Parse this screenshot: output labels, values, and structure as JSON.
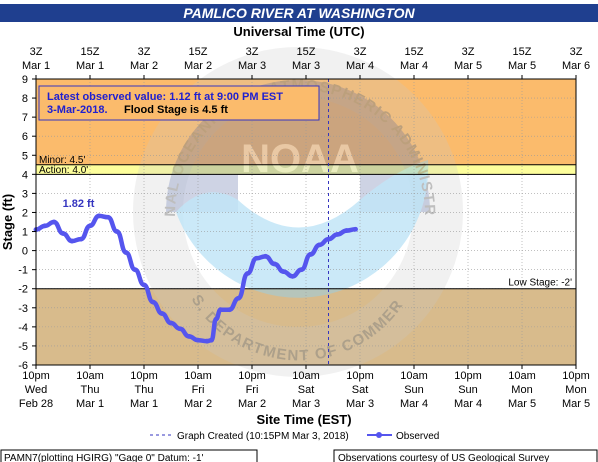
{
  "header": {
    "title": "PAMLICO RIVER AT WASHINGTON",
    "top_axis_title": "Universal Time (UTC)"
  },
  "info_box": {
    "line1": "Latest observed value: 1.12 ft at 9:00 PM EST",
    "line2_date": "3-Mar-2018.",
    "line2_flood": "Flood Stage is 4.5 ft"
  },
  "legend": {
    "created": "Graph Created (10:15PM Mar 3, 2018)",
    "observed": "Observed"
  },
  "footer": {
    "left": "PAMN7(plotting HGIRG) \"Gage 0\" Datum: -1'",
    "right": "Observations courtesy of US Geological Survey"
  },
  "watermark": {
    "arc_top": "NATIONAL OCEANIC AND ATMOSPHERIC ADMINISTRATION",
    "arc_bottom": "U.S. DEPARTMENT OF COMMERCE",
    "center": "NOAA"
  },
  "colors": {
    "title_bg": "#1f3f8f",
    "major_zone": "#fbbb6c",
    "minor_band": "#fdfe9c",
    "low_zone": "#d8bb8c",
    "series": "#5555ee",
    "info_border": "#3535c0",
    "info_text": "#2020d0"
  },
  "chart_data": {
    "type": "line",
    "ylabel": "Stage (ft)",
    "xlabel": "Site Time (EST)",
    "ylim": [
      -6,
      9
    ],
    "yticks": [
      -6,
      -5,
      -4,
      -3,
      -2,
      -1,
      0,
      1,
      2,
      3,
      4,
      5,
      6,
      7,
      8,
      9
    ],
    "grid": true,
    "thresholds": [
      {
        "name": "Minor",
        "label": "Minor: 4.5'",
        "value": 4.5
      },
      {
        "name": "Action",
        "label": "Action: 4.0'",
        "value": 4.0
      },
      {
        "name": "Low Stage",
        "label": "Low Stage: -2'",
        "value": -2
      }
    ],
    "bottom_ticks": [
      {
        "time": "10pm",
        "day": "Wed",
        "date": "Feb 28"
      },
      {
        "time": "10am",
        "day": "Thu",
        "date": "Mar 1"
      },
      {
        "time": "10pm",
        "day": "Thu",
        "date": "Mar 1"
      },
      {
        "time": "10am",
        "day": "Fri",
        "date": "Mar 2"
      },
      {
        "time": "10pm",
        "day": "Fri",
        "date": "Mar 2"
      },
      {
        "time": "10am",
        "day": "Sat",
        "date": "Mar 3"
      },
      {
        "time": "10pm",
        "day": "Sat",
        "date": "Mar 3"
      },
      {
        "time": "10am",
        "day": "Sun",
        "date": "Mar 4"
      },
      {
        "time": "10pm",
        "day": "Sun",
        "date": "Mar 4"
      },
      {
        "time": "10am",
        "day": "Mon",
        "date": "Mar 5"
      },
      {
        "time": "10pm",
        "day": "Mon",
        "date": "Mar 5"
      }
    ],
    "top_ticks": [
      {
        "hour": "3Z",
        "date": "Mar 1"
      },
      {
        "hour": "15Z",
        "date": "Mar 1"
      },
      {
        "hour": "3Z",
        "date": "Mar 2"
      },
      {
        "hour": "15Z",
        "date": "Mar 2"
      },
      {
        "hour": "3Z",
        "date": "Mar 3"
      },
      {
        "hour": "15Z",
        "date": "Mar 3"
      },
      {
        "hour": "3Z",
        "date": "Mar 4"
      },
      {
        "hour": "15Z",
        "date": "Mar 4"
      },
      {
        "hour": "3Z",
        "date": "Mar 5"
      },
      {
        "hour": "15Z",
        "date": "Mar 5"
      },
      {
        "hour": "3Z",
        "date": "Mar 6"
      }
    ],
    "graph_created": "Mar 3 10:15pm",
    "annotations": [
      {
        "label": "1.82 ft",
        "x": "Mar 1 7am",
        "y": 1.82
      }
    ],
    "series": [
      {
        "name": "Observed",
        "points": [
          [
            "Feb 28 10pm",
            1.1
          ],
          [
            "Mar 1 12am",
            1.3
          ],
          [
            "Mar 1 2am",
            1.5
          ],
          [
            "Mar 1 4am",
            0.9
          ],
          [
            "Mar 1 6am",
            0.5
          ],
          [
            "Mar 1 8am",
            0.6
          ],
          [
            "Mar 1 10am",
            1.3
          ],
          [
            "Mar 1 12pm",
            1.82
          ],
          [
            "Mar 1 2pm",
            1.75
          ],
          [
            "Mar 1 4pm",
            1.0
          ],
          [
            "Mar 1 6pm",
            -0.1
          ],
          [
            "Mar 1 8pm",
            -1.0
          ],
          [
            "Mar 1 10pm",
            -1.8
          ],
          [
            "Mar 2 12am",
            -2.7
          ],
          [
            "Mar 2 2am",
            -3.3
          ],
          [
            "Mar 2 4am",
            -3.8
          ],
          [
            "Mar 2 6am",
            -4.1
          ],
          [
            "Mar 2 8am",
            -4.5
          ],
          [
            "Mar 2 10am",
            -4.7
          ],
          [
            "Mar 2 12pm",
            -4.75
          ],
          [
            "Mar 2 1pm",
            -4.7
          ],
          [
            "Mar 2 2pm",
            -3.6
          ],
          [
            "Mar 2 3pm",
            -3.1
          ],
          [
            "Mar 2 5pm",
            -3.1
          ],
          [
            "Mar 2 7pm",
            -2.5
          ],
          [
            "Mar 2 9pm",
            -1.2
          ],
          [
            "Mar 2 11pm",
            -0.4
          ],
          [
            "Mar 3 1am",
            -0.3
          ],
          [
            "Mar 3 3am",
            -0.7
          ],
          [
            "Mar 3 5am",
            -1.1
          ],
          [
            "Mar 3 7am",
            -1.35
          ],
          [
            "Mar 3 9am",
            -1.0
          ],
          [
            "Mar 3 11am",
            -0.2
          ],
          [
            "Mar 3 1pm",
            0.3
          ],
          [
            "Mar 3 3pm",
            0.6
          ],
          [
            "Mar 3 5pm",
            0.85
          ],
          [
            "Mar 3 7pm",
            1.05
          ],
          [
            "Mar 3 9pm",
            1.12
          ]
        ]
      }
    ]
  }
}
